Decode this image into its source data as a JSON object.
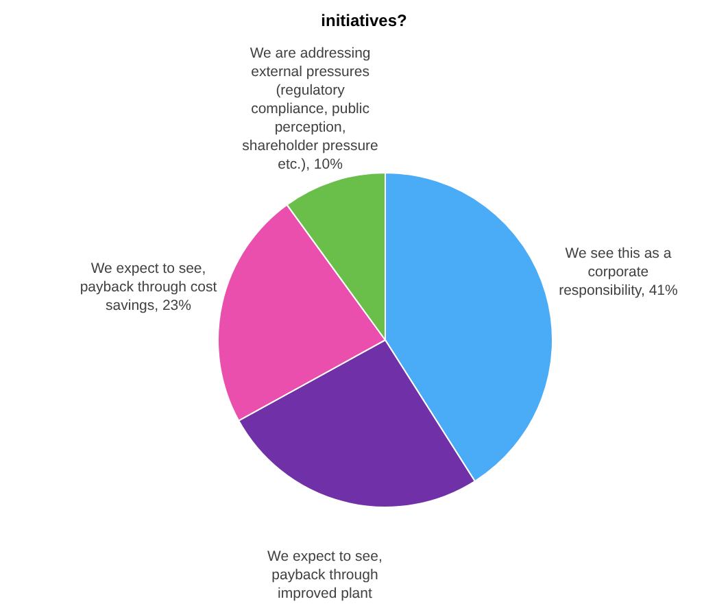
{
  "chart_data": {
    "type": "pie",
    "title": "initiatives?",
    "categories": [
      "We see this as a corporate responsibility",
      "We expect to see, payback through improved plant",
      "We expect to see, payback through cost savings",
      "We are addressing external pressures (regulatory compliance, public perception, shareholder pressure etc.)"
    ],
    "values": [
      41,
      26,
      23,
      10
    ],
    "colors": [
      "#4aabf7",
      "#7030a8",
      "#ea4fae",
      "#6abf4b"
    ],
    "value_labels": [
      "41%",
      null,
      "23%",
      "10%"
    ]
  }
}
